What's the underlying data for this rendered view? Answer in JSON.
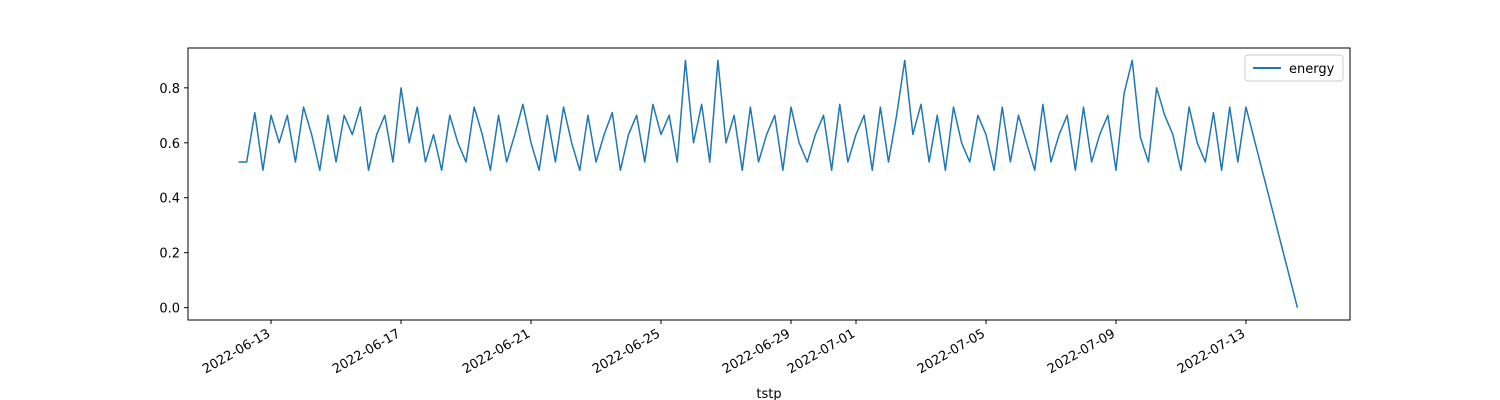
{
  "chart_data": {
    "type": "line",
    "x_label": "tstp",
    "x": [
      "2022-06-12T00:00",
      "2022-06-12T06:00",
      "2022-06-12T12:00",
      "2022-06-12T18:00",
      "2022-06-13T00:00",
      "2022-06-13T06:00",
      "2022-06-13T12:00",
      "2022-06-13T18:00",
      "2022-06-14T00:00",
      "2022-06-14T06:00",
      "2022-06-14T12:00",
      "2022-06-14T18:00",
      "2022-06-15T00:00",
      "2022-06-15T06:00",
      "2022-06-15T12:00",
      "2022-06-15T18:00",
      "2022-06-16T00:00",
      "2022-06-16T06:00",
      "2022-06-16T12:00",
      "2022-06-16T18:00",
      "2022-06-17T00:00",
      "2022-06-17T06:00",
      "2022-06-17T12:00",
      "2022-06-17T18:00",
      "2022-06-18T00:00",
      "2022-06-18T06:00",
      "2022-06-18T12:00",
      "2022-06-18T18:00",
      "2022-06-19T00:00",
      "2022-06-19T06:00",
      "2022-06-19T12:00",
      "2022-06-19T18:00",
      "2022-06-20T00:00",
      "2022-06-20T06:00",
      "2022-06-20T12:00",
      "2022-06-20T18:00",
      "2022-06-21T00:00",
      "2022-06-21T06:00",
      "2022-06-21T12:00",
      "2022-06-21T18:00",
      "2022-06-22T00:00",
      "2022-06-22T06:00",
      "2022-06-22T12:00",
      "2022-06-22T18:00",
      "2022-06-23T00:00",
      "2022-06-23T06:00",
      "2022-06-23T12:00",
      "2022-06-23T18:00",
      "2022-06-24T00:00",
      "2022-06-24T06:00",
      "2022-06-24T12:00",
      "2022-06-24T18:00",
      "2022-06-25T00:00",
      "2022-06-25T06:00",
      "2022-06-25T12:00",
      "2022-06-25T18:00",
      "2022-06-26T00:00",
      "2022-06-26T06:00",
      "2022-06-26T12:00",
      "2022-06-26T18:00",
      "2022-06-27T00:00",
      "2022-06-27T06:00",
      "2022-06-27T12:00",
      "2022-06-27T18:00",
      "2022-06-28T00:00",
      "2022-06-28T06:00",
      "2022-06-28T12:00",
      "2022-06-28T18:00",
      "2022-06-29T00:00",
      "2022-06-29T06:00",
      "2022-06-29T12:00",
      "2022-06-29T18:00",
      "2022-06-30T00:00",
      "2022-06-30T06:00",
      "2022-06-30T12:00",
      "2022-06-30T18:00",
      "2022-07-01T00:00",
      "2022-07-01T06:00",
      "2022-07-01T12:00",
      "2022-07-01T18:00",
      "2022-07-02T00:00",
      "2022-07-02T06:00",
      "2022-07-02T12:00",
      "2022-07-02T18:00",
      "2022-07-03T00:00",
      "2022-07-03T06:00",
      "2022-07-03T12:00",
      "2022-07-03T18:00",
      "2022-07-04T00:00",
      "2022-07-04T06:00",
      "2022-07-04T12:00",
      "2022-07-04T18:00",
      "2022-07-05T00:00",
      "2022-07-05T06:00",
      "2022-07-05T12:00",
      "2022-07-05T18:00",
      "2022-07-06T00:00",
      "2022-07-06T06:00",
      "2022-07-06T12:00",
      "2022-07-06T18:00",
      "2022-07-07T00:00",
      "2022-07-07T06:00",
      "2022-07-07T12:00",
      "2022-07-07T18:00",
      "2022-07-08T00:00",
      "2022-07-08T06:00",
      "2022-07-08T12:00",
      "2022-07-08T18:00",
      "2022-07-09T00:00",
      "2022-07-09T06:00",
      "2022-07-09T12:00",
      "2022-07-09T18:00",
      "2022-07-10T00:00",
      "2022-07-10T06:00",
      "2022-07-10T12:00",
      "2022-07-10T18:00",
      "2022-07-11T00:00",
      "2022-07-11T06:00",
      "2022-07-11T12:00",
      "2022-07-11T18:00",
      "2022-07-12T00:00",
      "2022-07-12T06:00",
      "2022-07-12T12:00",
      "2022-07-12T18:00",
      "2022-07-13T00:00",
      "2022-07-14T14:00"
    ],
    "series": [
      {
        "name": "energy",
        "color": "#1f77b4",
        "values": [
          0.53,
          0.53,
          0.71,
          0.5,
          0.7,
          0.6,
          0.7,
          0.53,
          0.73,
          0.63,
          0.5,
          0.7,
          0.53,
          0.7,
          0.63,
          0.73,
          0.5,
          0.63,
          0.7,
          0.53,
          0.8,
          0.6,
          0.73,
          0.53,
          0.63,
          0.5,
          0.7,
          0.6,
          0.53,
          0.73,
          0.63,
          0.5,
          0.7,
          0.53,
          0.63,
          0.74,
          0.6,
          0.5,
          0.7,
          0.53,
          0.73,
          0.6,
          0.5,
          0.7,
          0.53,
          0.63,
          0.71,
          0.5,
          0.63,
          0.7,
          0.53,
          0.74,
          0.63,
          0.7,
          0.53,
          0.9,
          0.6,
          0.74,
          0.53,
          0.9,
          0.6,
          0.7,
          0.5,
          0.73,
          0.53,
          0.63,
          0.7,
          0.5,
          0.73,
          0.6,
          0.53,
          0.63,
          0.7,
          0.5,
          0.74,
          0.53,
          0.63,
          0.7,
          0.5,
          0.73,
          0.53,
          0.7,
          0.9,
          0.63,
          0.74,
          0.53,
          0.7,
          0.5,
          0.73,
          0.6,
          0.53,
          0.7,
          0.63,
          0.5,
          0.73,
          0.53,
          0.7,
          0.6,
          0.5,
          0.74,
          0.53,
          0.63,
          0.7,
          0.5,
          0.73,
          0.53,
          0.63,
          0.7,
          0.5,
          0.78,
          0.9,
          0.62,
          0.53,
          0.8,
          0.7,
          0.63,
          0.5,
          0.73,
          0.6,
          0.53,
          0.71,
          0.5,
          0.73,
          0.53,
          0.73,
          0.0
        ]
      }
    ],
    "xlim": [
      "2022-06-10T10:40",
      "2022-07-16T04:50"
    ],
    "xticks": [
      "2022-06-13",
      "2022-06-17",
      "2022-06-21",
      "2022-06-25",
      "2022-06-29",
      "2022-07-01",
      "2022-07-05",
      "2022-07-09",
      "2022-07-13"
    ],
    "ylim": [
      -0.045,
      0.945
    ],
    "yticks": [
      {
        "value": 0,
        "label": "0.0"
      },
      0.2,
      0.4,
      0.6,
      0.8
    ],
    "legend": "upper right"
  }
}
